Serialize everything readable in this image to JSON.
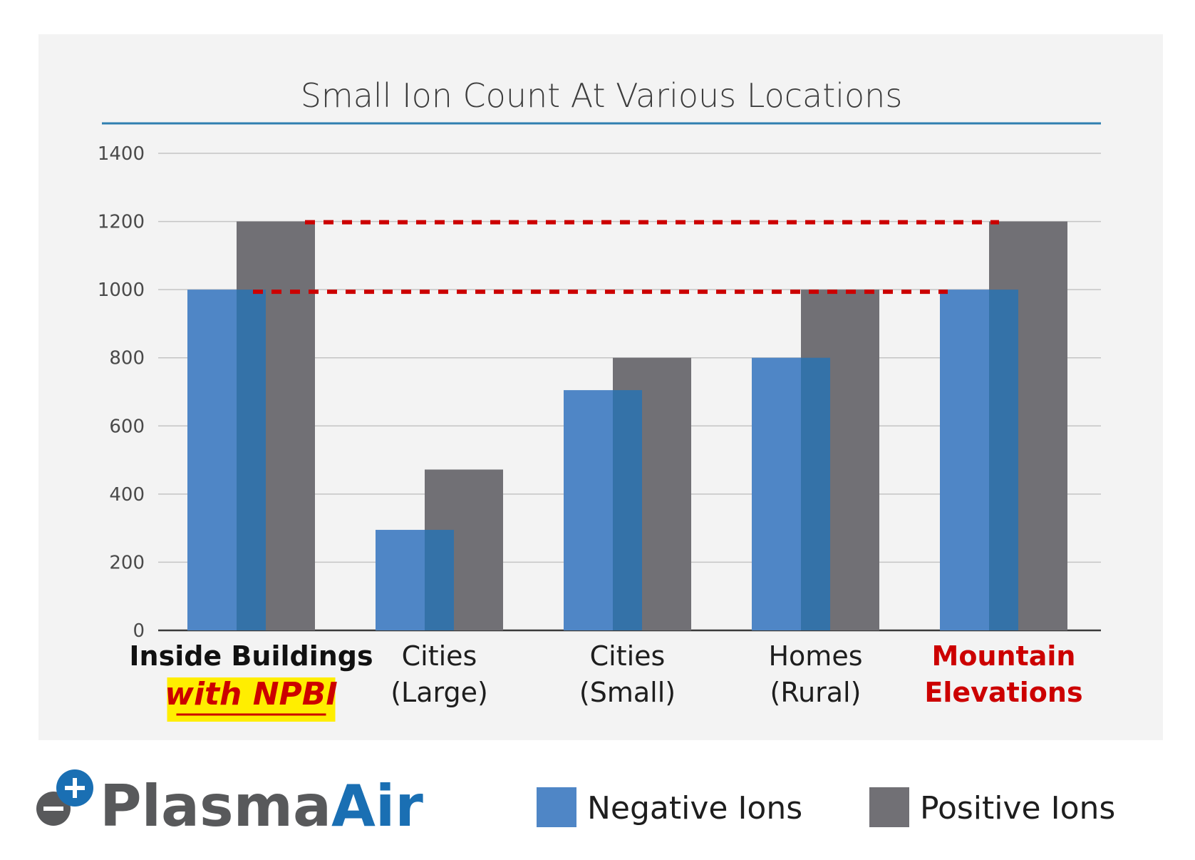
{
  "chart_data": {
    "type": "bar",
    "title": "Small Ion Count At Various Locations",
    "categories": [
      {
        "line1": "Inside Buildings",
        "line2": "with NPBI",
        "style": "highlight"
      },
      {
        "line1": "Cities",
        "line2": "(Large)",
        "style": "normal"
      },
      {
        "line1": "Cities",
        "line2": "(Small)",
        "style": "normal"
      },
      {
        "line1": "Homes",
        "line2": "(Rural)",
        "style": "normal"
      },
      {
        "line1": "Mountain",
        "line2": "Elevations",
        "style": "red"
      }
    ],
    "series": [
      {
        "name": "Negative Ions",
        "color": "#4f86c6",
        "values": [
          1000,
          295,
          705,
          800,
          1000
        ]
      },
      {
        "name": "Positive Ions",
        "color": "#717075",
        "values": [
          1200,
          472,
          800,
          1000,
          1200
        ]
      }
    ],
    "overlap_color": "#3472a8",
    "ylim": [
      0,
      1400
    ],
    "yticks": [
      0,
      200,
      400,
      600,
      800,
      1000,
      1200,
      1400
    ],
    "grid": true,
    "reference_lines": [
      {
        "value": 1200,
        "from_category": 0,
        "to_category": 4,
        "style": "dashed",
        "color": "#cc0000"
      },
      {
        "value": 1000,
        "from_category": 0,
        "to_category": 4,
        "style": "dashed",
        "color": "#cc0000"
      }
    ],
    "legend_position": "bottom-right"
  },
  "logo": {
    "part1": "Plasma",
    "part2": "Air",
    "color1": "#58595b",
    "color2": "#1a6fb3"
  },
  "colors": {
    "title_rule": "#2f7fb0",
    "highlight_bg": "#ffee00",
    "red": "#cc0000"
  }
}
